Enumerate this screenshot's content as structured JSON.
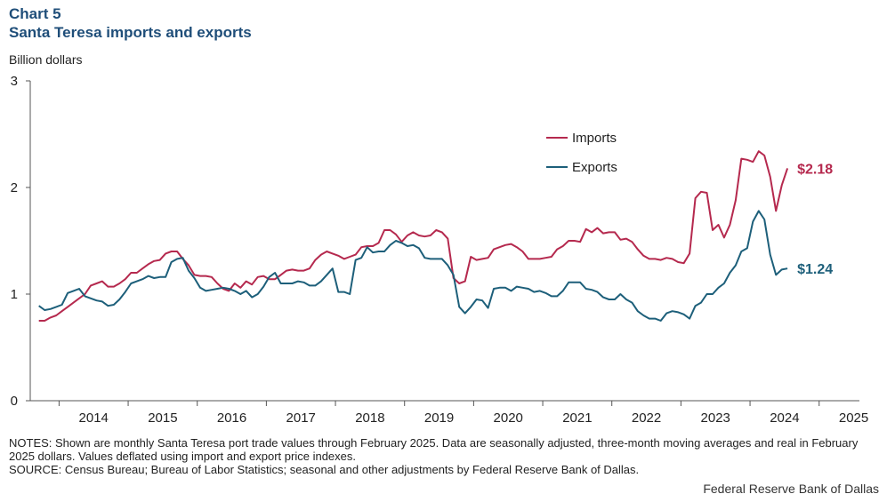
{
  "header": {
    "chart_label": "Chart 5",
    "title": "Santa Teresa imports and exports",
    "unit": "Billion dollars"
  },
  "footer": {
    "notes": "NOTES: Shown are monthly Santa Teresa port trade values through February 2025. Data are seasonally adjusted, three-month moving averages and real in February 2025 dollars. Values deflated using import and export price indexes.",
    "source": "SOURCE: Census Bureau; Bureau of Labor Statistics; seasonal and other adjustments by Federal Reserve Bank of Dallas.",
    "credit": "Federal Reserve Bank of Dallas"
  },
  "colors": {
    "imports": "#b5294e",
    "exports": "#1d5f7a",
    "axis": "#555555"
  },
  "chart_data": {
    "type": "line",
    "xlim": [
      2013.583,
      2025.583
    ],
    "ylim": [
      0,
      3
    ],
    "yticks": [
      0,
      1,
      2,
      3
    ],
    "ytick_labels": [
      "0",
      "1",
      "2",
      "3"
    ],
    "xtick_labels": [
      "2014",
      "2015",
      "2016",
      "2017",
      "2018",
      "2019",
      "2020",
      "2021",
      "2022",
      "2023",
      "2024",
      "2025"
    ],
    "legend_position": "upper-right",
    "x_start": "Sep 2013",
    "x_end": "Feb 2025",
    "series": [
      {
        "name": "Imports",
        "end_label": "$2.18",
        "values": [
          0.75,
          0.75,
          0.78,
          0.8,
          0.84,
          0.88,
          0.92,
          0.96,
          1.0,
          1.08,
          1.1,
          1.12,
          1.07,
          1.07,
          1.1,
          1.14,
          1.2,
          1.2,
          1.24,
          1.28,
          1.31,
          1.32,
          1.38,
          1.4,
          1.4,
          1.33,
          1.27,
          1.18,
          1.17,
          1.17,
          1.16,
          1.1,
          1.05,
          1.03,
          1.1,
          1.06,
          1.12,
          1.09,
          1.16,
          1.17,
          1.14,
          1.14,
          1.18,
          1.22,
          1.23,
          1.22,
          1.22,
          1.24,
          1.32,
          1.37,
          1.4,
          1.38,
          1.36,
          1.33,
          1.35,
          1.37,
          1.44,
          1.45,
          1.45,
          1.48,
          1.6,
          1.6,
          1.56,
          1.49,
          1.55,
          1.58,
          1.55,
          1.54,
          1.55,
          1.6,
          1.58,
          1.52,
          1.15,
          1.1,
          1.12,
          1.35,
          1.32,
          1.33,
          1.34,
          1.42,
          1.44,
          1.46,
          1.47,
          1.44,
          1.4,
          1.33,
          1.33,
          1.33,
          1.34,
          1.35,
          1.42,
          1.45,
          1.5,
          1.5,
          1.49,
          1.61,
          1.58,
          1.62,
          1.57,
          1.58,
          1.58,
          1.51,
          1.52,
          1.49,
          1.42,
          1.36,
          1.33,
          1.33,
          1.32,
          1.34,
          1.33,
          1.3,
          1.29,
          1.38,
          1.9,
          1.96,
          1.95,
          1.6,
          1.65,
          1.53,
          1.65,
          1.88,
          2.27,
          2.26,
          2.24,
          2.34,
          2.3,
          2.1,
          1.78,
          2.02,
          2.18
        ]
      },
      {
        "name": "Exports",
        "end_label": "$1.24",
        "values": [
          0.89,
          0.85,
          0.86,
          0.88,
          0.9,
          1.01,
          1.03,
          1.05,
          0.98,
          0.96,
          0.94,
          0.93,
          0.89,
          0.9,
          0.95,
          1.02,
          1.1,
          1.12,
          1.14,
          1.17,
          1.15,
          1.16,
          1.16,
          1.3,
          1.33,
          1.34,
          1.22,
          1.15,
          1.06,
          1.03,
          1.04,
          1.05,
          1.06,
          1.05,
          1.03,
          1.0,
          1.03,
          0.97,
          1.0,
          1.07,
          1.16,
          1.2,
          1.1,
          1.1,
          1.1,
          1.12,
          1.11,
          1.08,
          1.08,
          1.12,
          1.18,
          1.24,
          1.02,
          1.02,
          1.0,
          1.32,
          1.34,
          1.44,
          1.39,
          1.4,
          1.4,
          1.46,
          1.5,
          1.48,
          1.45,
          1.46,
          1.43,
          1.34,
          1.33,
          1.33,
          1.33,
          1.27,
          1.18,
          0.88,
          0.82,
          0.88,
          0.95,
          0.94,
          0.87,
          1.05,
          1.06,
          1.06,
          1.03,
          1.07,
          1.06,
          1.05,
          1.02,
          1.03,
          1.01,
          0.98,
          0.98,
          1.03,
          1.11,
          1.11,
          1.11,
          1.05,
          1.04,
          1.02,
          0.97,
          0.95,
          0.95,
          1.0,
          0.95,
          0.92,
          0.84,
          0.8,
          0.77,
          0.77,
          0.75,
          0.82,
          0.84,
          0.83,
          0.81,
          0.77,
          0.89,
          0.92,
          1.0,
          1.0,
          1.06,
          1.1,
          1.2,
          1.27,
          1.4,
          1.43,
          1.68,
          1.78,
          1.7,
          1.37,
          1.18,
          1.23,
          1.24
        ]
      }
    ]
  }
}
